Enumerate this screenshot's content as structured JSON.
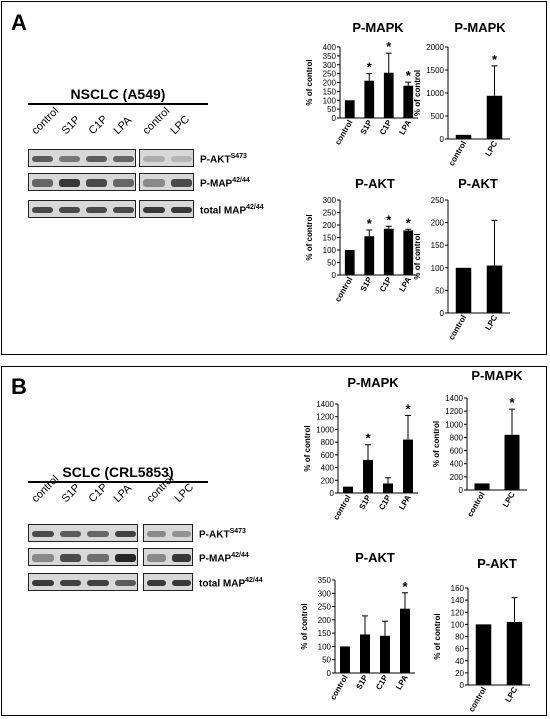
{
  "panels": [
    {
      "label": "A",
      "cell_line": "NSCLC (A549)",
      "lanes_main": [
        "control",
        "S1P",
        "C1P",
        "LPA"
      ],
      "lanes_side": [
        "control",
        "LPC"
      ],
      "rows": [
        {
          "name": "P-AKT",
          "sup": "S473"
        },
        {
          "name": "P-MAP",
          "sup": "42/44"
        },
        {
          "name": "total MAP",
          "sup": "42/44"
        }
      ]
    },
    {
      "label": "B",
      "cell_line": "SCLC (CRL5853)",
      "lanes_main": [
        "control",
        "S1P",
        "C1P",
        "LPA"
      ],
      "lanes_side": [
        "control",
        "LPC"
      ],
      "rows": [
        {
          "name": "P-AKT",
          "sup": "S473"
        },
        {
          "name": "P-MAP",
          "sup": "42/44"
        },
        {
          "name": "total MAP",
          "sup": "42/44"
        }
      ]
    }
  ],
  "chart_data": [
    {
      "type": "bar",
      "title": "P-MAPK",
      "ylabel": "% of control",
      "categories": [
        "control",
        "S1P",
        "C1P",
        "LPA"
      ],
      "values": [
        100,
        210,
        255,
        182
      ],
      "errors": [
        0,
        40,
        110,
        20
      ],
      "significant": [
        false,
        true,
        true,
        true
      ],
      "ylim": [
        0,
        400
      ],
      "yticks": [
        0,
        50,
        100,
        150,
        200,
        250,
        300,
        350,
        400
      ]
    },
    {
      "type": "bar",
      "title": "P-MAPK",
      "ylabel": "% of control",
      "categories": [
        "control",
        "LPC"
      ],
      "values": [
        90,
        940
      ],
      "errors": [
        0,
        650
      ],
      "significant": [
        false,
        true
      ],
      "ylim": [
        0,
        2000
      ],
      "yticks": [
        0,
        500,
        1000,
        1500,
        2000
      ]
    },
    {
      "type": "bar",
      "title": "P-AKT",
      "ylabel": "% of control",
      "categories": [
        "control",
        "S1P",
        "C1P",
        "LPA"
      ],
      "values": [
        100,
        155,
        185,
        178
      ],
      "errors": [
        0,
        25,
        10,
        5
      ],
      "significant": [
        false,
        true,
        true,
        true
      ],
      "ylim": [
        0,
        300
      ],
      "yticks": [
        0,
        50,
        100,
        150,
        200,
        250,
        300
      ]
    },
    {
      "type": "bar",
      "title": "P-AKT",
      "ylabel": "% of control",
      "categories": [
        "control",
        "LPC"
      ],
      "values": [
        100,
        105
      ],
      "errors": [
        0,
        100
      ],
      "significant": [
        false,
        false
      ],
      "ylim": [
        0,
        250
      ],
      "yticks": [
        0,
        50,
        100,
        150,
        200,
        250
      ]
    },
    {
      "type": "bar",
      "title": "P-MAPK",
      "ylabel": "% of control",
      "categories": [
        "control",
        "S1P",
        "C1P",
        "LPA"
      ],
      "values": [
        100,
        520,
        150,
        840
      ],
      "errors": [
        0,
        240,
        90,
        380
      ],
      "significant": [
        false,
        true,
        false,
        true
      ],
      "ylim": [
        0,
        1400
      ],
      "yticks": [
        0,
        200,
        400,
        600,
        800,
        1000,
        1200,
        1400
      ]
    },
    {
      "type": "bar",
      "title": "P-MAPK",
      "ylabel": "% of control",
      "categories": [
        "control",
        "LPC"
      ],
      "values": [
        100,
        840
      ],
      "errors": [
        0,
        390
      ],
      "significant": [
        false,
        true
      ],
      "ylim": [
        0,
        1400
      ],
      "yticks": [
        0,
        200,
        400,
        600,
        800,
        1000,
        1200,
        1400
      ]
    },
    {
      "type": "bar",
      "title": "P-AKT",
      "ylabel": "% of control",
      "categories": [
        "control",
        "S1P",
        "C1P",
        "LPA"
      ],
      "values": [
        100,
        145,
        140,
        242
      ],
      "errors": [
        0,
        70,
        55,
        60
      ],
      "significant": [
        false,
        false,
        false,
        true
      ],
      "ylim": [
        0,
        350
      ],
      "yticks": [
        0,
        50,
        100,
        150,
        200,
        250,
        300,
        350
      ]
    },
    {
      "type": "bar",
      "title": "P-AKT",
      "ylabel": "% of control",
      "categories": [
        "control",
        "LPC"
      ],
      "values": [
        100,
        104
      ],
      "errors": [
        0,
        40
      ],
      "significant": [
        false,
        false
      ],
      "ylim": [
        0,
        160
      ],
      "yticks": [
        0,
        20,
        40,
        60,
        80,
        100,
        120,
        140,
        160
      ]
    }
  ]
}
